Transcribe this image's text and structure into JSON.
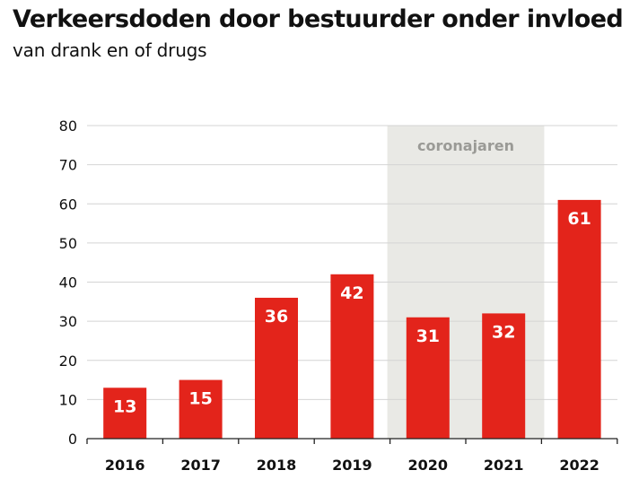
{
  "chart_data": {
    "type": "bar",
    "title": "Verkeersdoden door bestuurder onder invloed",
    "subtitle": "van drank en of drugs",
    "xlabel": "",
    "ylabel": "",
    "categories": [
      "2016",
      "2017",
      "2018",
      "2019",
      "2020",
      "2021",
      "2022"
    ],
    "values": [
      13,
      15,
      36,
      42,
      31,
      32,
      61
    ],
    "ylim": [
      0,
      80
    ],
    "yticks": [
      0,
      10,
      20,
      30,
      40,
      50,
      60,
      70,
      80
    ],
    "grid": true,
    "bar_color": "#e3241b",
    "highlight": {
      "label": "coronajaren",
      "from": "2020",
      "to": "2021",
      "color": "#e9e9e5"
    }
  }
}
